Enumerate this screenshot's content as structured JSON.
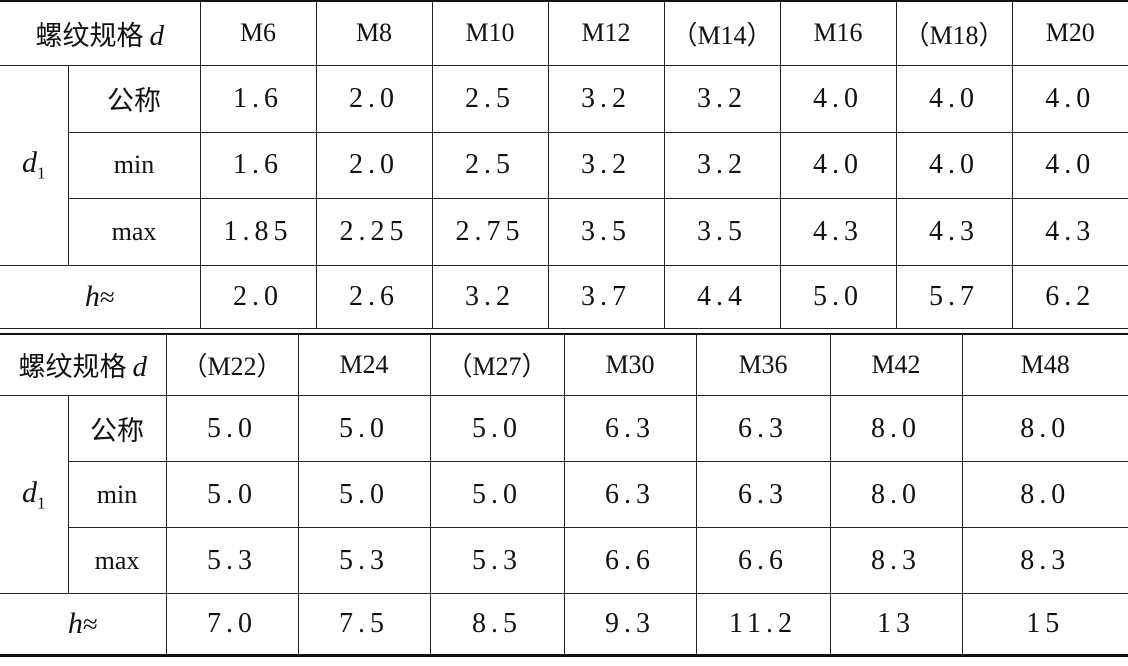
{
  "tables": [
    {
      "header_label": "螺纹规格",
      "header_symbol": "d",
      "columns": [
        "M6",
        "M8",
        "M10",
        "M12",
        "（M14）",
        "M16",
        "（M18）",
        "M20"
      ],
      "group_symbol": "d",
      "group_subscript": "1",
      "rows": [
        {
          "label": "公称",
          "values": [
            "1.6",
            "2.0",
            "2.5",
            "3.2",
            "3.2",
            "4.0",
            "4.0",
            "4.0"
          ]
        },
        {
          "label": "min",
          "values": [
            "1.6",
            "2.0",
            "2.5",
            "3.2",
            "3.2",
            "4.0",
            "4.0",
            "4.0"
          ]
        },
        {
          "label": "max",
          "values": [
            "1.85",
            "2.25",
            "2.75",
            "3.5",
            "3.5",
            "4.3",
            "4.3",
            "4.3"
          ]
        }
      ],
      "h_symbol": "h",
      "h_approx": "≈",
      "h_values": [
        "2.0",
        "2.6",
        "3.2",
        "3.7",
        "4.4",
        "5.0",
        "5.7",
        "6.2"
      ]
    },
    {
      "header_label": "螺纹规格",
      "header_symbol": "d",
      "columns": [
        "（M22）",
        "M24",
        "（M27）",
        "M30",
        "M36",
        "M42",
        "M48"
      ],
      "group_symbol": "d",
      "group_subscript": "1",
      "rows": [
        {
          "label": "公称",
          "values": [
            "5.0",
            "5.0",
            "5.0",
            "6.3",
            "6.3",
            "8.0",
            "8.0"
          ]
        },
        {
          "label": "min",
          "values": [
            "5.0",
            "5.0",
            "5.0",
            "6.3",
            "6.3",
            "8.0",
            "8.0"
          ]
        },
        {
          "label": "max",
          "values": [
            "5.3",
            "5.3",
            "5.3",
            "6.6",
            "6.6",
            "8.3",
            "8.3"
          ]
        }
      ],
      "h_symbol": "h",
      "h_approx": "≈",
      "h_values": [
        "7.0",
        "7.5",
        "8.5",
        "9.3",
        "11.2",
        "13",
        "15"
      ]
    }
  ]
}
